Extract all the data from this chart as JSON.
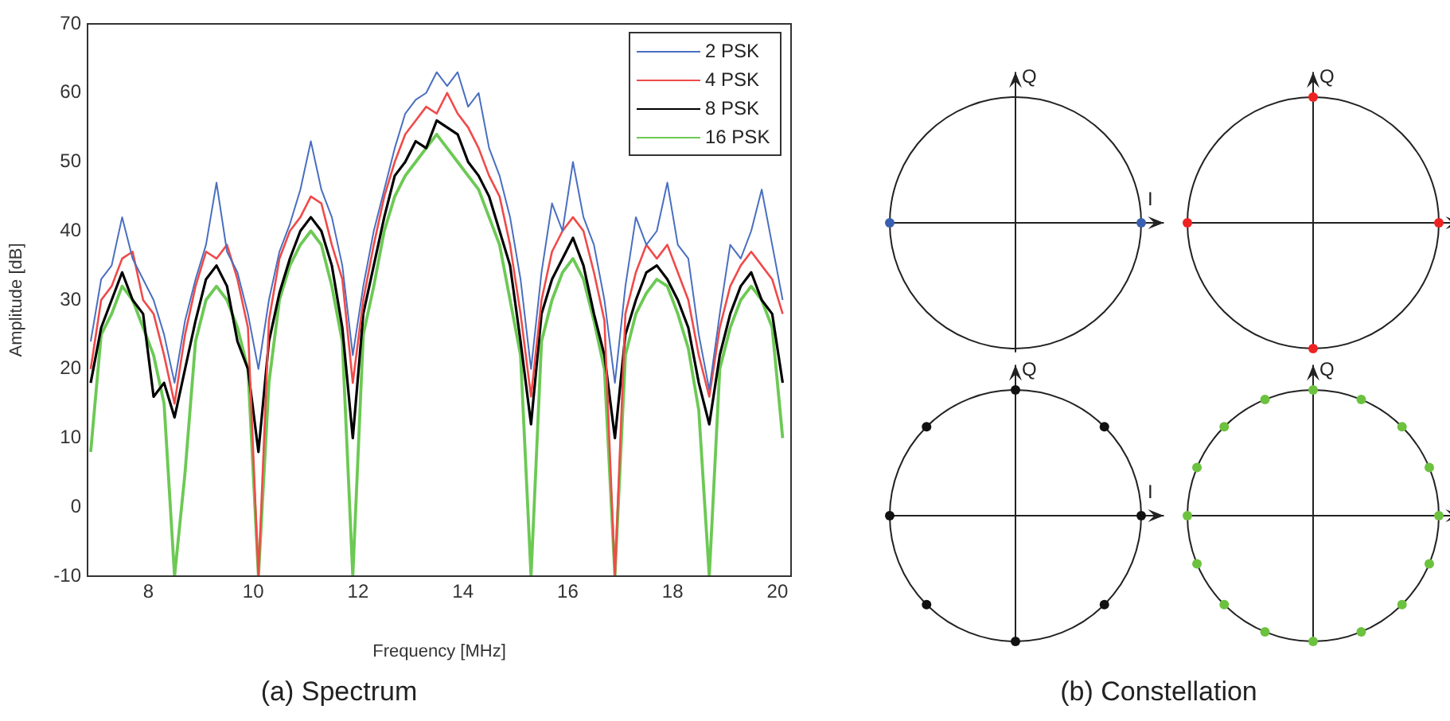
{
  "chart_data": [
    {
      "type": "line",
      "xlabel": "Frequency [MHz]",
      "ylabel": "Amplitude [dB]",
      "annotations": [
        "(a) Spectrum"
      ],
      "x": [
        6.9,
        7.1,
        7.3,
        7.5,
        7.7,
        7.9,
        8.1,
        8.3,
        8.5,
        8.7,
        8.9,
        9.1,
        9.3,
        9.5,
        9.7,
        9.9,
        10.1,
        10.3,
        10.5,
        10.7,
        10.9,
        11.1,
        11.3,
        11.5,
        11.7,
        11.9,
        12.1,
        12.3,
        12.5,
        12.7,
        12.9,
        13.1,
        13.3,
        13.5,
        13.7,
        13.9,
        14.1,
        14.3,
        14.5,
        14.7,
        14.9,
        15.1,
        15.3,
        15.5,
        15.7,
        15.9,
        16.1,
        16.3,
        16.5,
        16.7,
        16.9,
        17.1,
        17.3,
        17.5,
        17.7,
        17.9,
        18.1,
        18.3,
        18.5,
        18.7,
        18.9,
        19.1,
        19.3,
        19.5,
        19.7,
        19.9,
        20.1
      ],
      "series": [
        {
          "name": "2 PSK",
          "color": "#4a6fc0",
          "values": [
            24,
            33,
            35,
            42,
            36,
            33,
            30,
            25,
            18,
            27,
            33,
            38,
            47,
            37,
            34,
            28,
            20,
            30,
            37,
            41,
            46,
            53,
            46,
            42,
            35,
            22,
            32,
            40,
            46,
            52,
            57,
            59,
            60,
            63,
            61,
            63,
            58,
            60,
            52,
            48,
            42,
            33,
            20,
            34,
            44,
            40,
            50,
            42,
            38,
            30,
            18,
            32,
            42,
            38,
            40,
            47,
            38,
            36,
            25,
            17,
            28,
            38,
            36,
            40,
            46,
            38,
            30
          ]
        },
        {
          "name": "4 PSK",
          "color": "#f04a4a",
          "values": [
            20,
            30,
            32,
            36,
            37,
            30,
            28,
            22,
            15,
            25,
            32,
            37,
            36,
            38,
            33,
            26,
            -10,
            27,
            36,
            40,
            42,
            45,
            44,
            38,
            33,
            18,
            30,
            38,
            45,
            50,
            54,
            56,
            58,
            57,
            60,
            57,
            55,
            52,
            48,
            45,
            38,
            28,
            16,
            30,
            37,
            40,
            42,
            40,
            34,
            27,
            -10,
            28,
            34,
            38,
            36,
            38,
            34,
            30,
            22,
            16,
            26,
            32,
            35,
            37,
            35,
            33,
            28
          ]
        },
        {
          "name": "8 PSK",
          "color": "#000000",
          "values": [
            18,
            26,
            30,
            34,
            30,
            28,
            16,
            18,
            13,
            20,
            27,
            33,
            35,
            32,
            24,
            20,
            8,
            24,
            31,
            36,
            40,
            42,
            40,
            35,
            26,
            10,
            28,
            35,
            42,
            48,
            50,
            53,
            52,
            56,
            55,
            54,
            50,
            48,
            45,
            40,
            35,
            24,
            12,
            28,
            33,
            36,
            39,
            35,
            28,
            22,
            10,
            25,
            30,
            34,
            35,
            33,
            30,
            26,
            18,
            12,
            22,
            28,
            32,
            34,
            30,
            28,
            18
          ]
        },
        {
          "name": "16 PSK",
          "color": "#6cc954",
          "values": [
            8,
            25,
            28,
            32,
            30,
            26,
            22,
            15,
            -10,
            5,
            24,
            30,
            32,
            30,
            26,
            20,
            -10,
            18,
            30,
            35,
            38,
            40,
            38,
            32,
            24,
            -10,
            25,
            32,
            40,
            45,
            48,
            50,
            52,
            54,
            52,
            50,
            48,
            46,
            42,
            38,
            30,
            22,
            -10,
            24,
            30,
            34,
            36,
            33,
            27,
            20,
            -10,
            22,
            28,
            31,
            33,
            32,
            28,
            23,
            14,
            -10,
            20,
            26,
            30,
            32,
            30,
            26,
            10
          ]
        }
      ],
      "xlim": [
        6.84,
        20.26
      ],
      "xticks": [
        8,
        10,
        12,
        14,
        16,
        18,
        20
      ],
      "ylim": [
        -10,
        70
      ],
      "yticks": [
        -10,
        0,
        10,
        20,
        30,
        40,
        50,
        60,
        70
      ],
      "grid": false,
      "legend": "top right"
    },
    {
      "type": "other",
      "xlabel": "I",
      "ylabel": "Q",
      "annotations": [
        "(b) Constellation"
      ],
      "colors": [
        "#3a5fb0",
        "#3a5fb0"
      ]
    },
    {
      "type": "other",
      "ylabel": "Q",
      "colors": [
        "#ee2222",
        "#ee2222",
        "#ee2222",
        "#ee2222"
      ]
    },
    {
      "type": "other",
      "xlabel": "I",
      "ylabel": "Q",
      "colors": [
        "#111111",
        "#111111",
        "#111111",
        "#111111",
        "#111111",
        "#111111",
        "#111111",
        "#111111"
      ]
    },
    {
      "type": "other",
      "ylabel": "Q",
      "colors": [
        "#6cc23e",
        "#6cc23e",
        "#6cc23e",
        "#6cc23e",
        "#6cc23e",
        "#6cc23e",
        "#6cc23e",
        "#6cc23e",
        "#6cc23e",
        "#6cc23e",
        "#6cc23e",
        "#6cc23e",
        "#6cc23e",
        "#6cc23e",
        "#6cc23e",
        "#6cc23e"
      ]
    }
  ]
}
